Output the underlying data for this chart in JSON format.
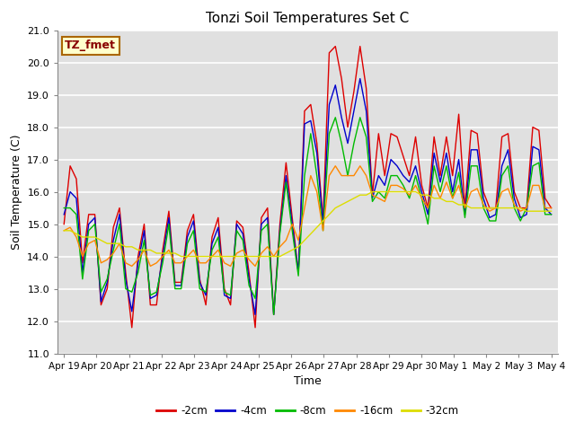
{
  "title": "Tonzi Soil Temperatures Set C",
  "xlabel": "Time",
  "ylabel": "Soil Temperature (C)",
  "ylim": [
    11.0,
    21.0
  ],
  "yticks": [
    11.0,
    12.0,
    13.0,
    14.0,
    15.0,
    16.0,
    17.0,
    18.0,
    19.0,
    20.0,
    21.0
  ],
  "colors": {
    "-2cm": "#dd0000",
    "-4cm": "#0000cc",
    "-8cm": "#00bb00",
    "-16cm": "#ff8800",
    "-32cm": "#dddd00"
  },
  "legend_label": "TZ_fmet",
  "annotation_bg": "#ffffcc",
  "annotation_border": "#aa6600",
  "annotation_text_color": "#880000",
  "bg_color": "#e8e8e8",
  "plot_bg": "#e0e0e0",
  "x_tick_labels": [
    "Apr 19",
    "Apr 20",
    "Apr 21",
    "Apr 22",
    "Apr 23",
    "Apr 24",
    "Apr 25",
    "Apr 26",
    "Apr 27",
    "Apr 28",
    "Apr 29",
    "Apr 30",
    "May 1",
    "May 2",
    "May 3",
    "May 4"
  ],
  "data_2cm": [
    15.0,
    16.8,
    16.4,
    13.8,
    15.3,
    15.3,
    12.5,
    13.0,
    14.9,
    15.5,
    13.5,
    11.8,
    14.0,
    15.0,
    12.5,
    12.5,
    14.2,
    15.4,
    13.2,
    13.2,
    14.8,
    15.3,
    13.3,
    12.5,
    14.6,
    15.2,
    13.0,
    12.5,
    15.1,
    14.9,
    13.5,
    11.8,
    15.2,
    15.5,
    12.2,
    15.0,
    16.9,
    15.2,
    13.5,
    18.5,
    18.7,
    17.5,
    15.1,
    20.3,
    20.5,
    19.5,
    18.0,
    19.1,
    20.5,
    19.2,
    15.9,
    17.8,
    16.5,
    17.8,
    17.7,
    17.1,
    16.5,
    17.7,
    16.2,
    15.5,
    17.7,
    16.5,
    17.7,
    16.5,
    18.4,
    15.5,
    17.9,
    17.8,
    16.0,
    15.5,
    15.5,
    17.7,
    17.8,
    16.0,
    15.5,
    15.5,
    18.0,
    17.9,
    15.8,
    15.5
  ],
  "data_4cm": [
    15.3,
    16.0,
    15.8,
    13.5,
    15.0,
    15.2,
    12.6,
    13.2,
    14.5,
    15.3,
    13.3,
    12.3,
    13.8,
    14.8,
    12.7,
    12.8,
    14.0,
    15.2,
    13.1,
    13.1,
    14.6,
    15.1,
    13.2,
    12.8,
    14.4,
    14.9,
    12.8,
    12.7,
    15.0,
    14.7,
    13.3,
    12.2,
    15.0,
    15.2,
    12.2,
    14.8,
    16.5,
    15.0,
    13.5,
    18.1,
    18.2,
    17.2,
    15.0,
    18.7,
    19.3,
    18.3,
    17.5,
    18.5,
    19.5,
    18.5,
    15.8,
    16.5,
    16.2,
    17.0,
    16.8,
    16.5,
    16.3,
    16.8,
    16.0,
    15.3,
    17.2,
    16.3,
    17.2,
    16.0,
    17.0,
    15.3,
    17.3,
    17.3,
    15.8,
    15.2,
    15.3,
    16.8,
    17.3,
    15.8,
    15.2,
    15.3,
    17.4,
    17.3,
    15.5,
    15.3
  ],
  "data_8cm": [
    15.5,
    15.5,
    15.3,
    13.3,
    14.8,
    15.0,
    12.9,
    13.3,
    14.2,
    15.0,
    13.0,
    12.9,
    13.5,
    14.5,
    12.8,
    12.9,
    13.8,
    15.0,
    13.0,
    13.0,
    14.4,
    14.8,
    13.0,
    12.9,
    14.2,
    14.6,
    12.9,
    12.8,
    14.8,
    14.5,
    13.1,
    12.7,
    14.8,
    15.0,
    12.2,
    14.7,
    16.3,
    14.8,
    13.4,
    16.5,
    17.8,
    16.5,
    14.8,
    17.8,
    18.3,
    17.5,
    16.5,
    17.5,
    18.3,
    17.7,
    15.7,
    16.0,
    15.8,
    16.5,
    16.5,
    16.2,
    15.8,
    16.5,
    15.8,
    15.0,
    16.8,
    16.0,
    16.8,
    15.8,
    16.6,
    15.2,
    16.8,
    16.8,
    15.5,
    15.1,
    15.1,
    16.5,
    16.8,
    15.5,
    15.1,
    15.5,
    16.8,
    16.9,
    15.3,
    15.3
  ],
  "data_16cm": [
    14.8,
    14.9,
    14.6,
    14.0,
    14.4,
    14.5,
    13.8,
    13.9,
    14.1,
    14.4,
    13.8,
    13.7,
    13.9,
    14.2,
    13.7,
    13.8,
    14.0,
    14.2,
    13.8,
    13.8,
    14.0,
    14.2,
    13.8,
    13.8,
    14.0,
    14.2,
    13.8,
    13.7,
    14.1,
    14.2,
    13.9,
    13.7,
    14.1,
    14.3,
    14.0,
    14.3,
    14.5,
    15.0,
    14.5,
    15.5,
    16.5,
    16.0,
    14.8,
    16.5,
    16.8,
    16.5,
    16.5,
    16.5,
    16.8,
    16.5,
    15.9,
    15.8,
    15.7,
    16.2,
    16.2,
    16.1,
    15.9,
    16.2,
    15.8,
    15.5,
    16.2,
    15.8,
    16.3,
    15.8,
    16.2,
    15.5,
    16.0,
    16.1,
    15.6,
    15.4,
    15.5,
    16.0,
    16.1,
    15.6,
    15.4,
    15.5,
    16.2,
    16.2,
    15.5,
    15.5
  ],
  "data_32cm": [
    14.8,
    14.8,
    14.7,
    14.6,
    14.6,
    14.6,
    14.5,
    14.4,
    14.4,
    14.4,
    14.3,
    14.3,
    14.2,
    14.2,
    14.2,
    14.1,
    14.1,
    14.1,
    14.1,
    14.0,
    14.0,
    14.0,
    14.0,
    14.0,
    14.0,
    14.0,
    14.0,
    14.0,
    14.0,
    14.0,
    14.0,
    14.0,
    14.0,
    14.0,
    14.0,
    14.0,
    14.1,
    14.2,
    14.3,
    14.5,
    14.7,
    14.9,
    15.1,
    15.3,
    15.5,
    15.6,
    15.7,
    15.8,
    15.9,
    15.9,
    16.0,
    16.0,
    16.0,
    16.0,
    16.0,
    16.0,
    16.0,
    16.0,
    15.9,
    15.9,
    15.8,
    15.8,
    15.7,
    15.7,
    15.6,
    15.6,
    15.5,
    15.5,
    15.5,
    15.5,
    15.5,
    15.5,
    15.5,
    15.5,
    15.5,
    15.4,
    15.4,
    15.4,
    15.4,
    15.4
  ]
}
